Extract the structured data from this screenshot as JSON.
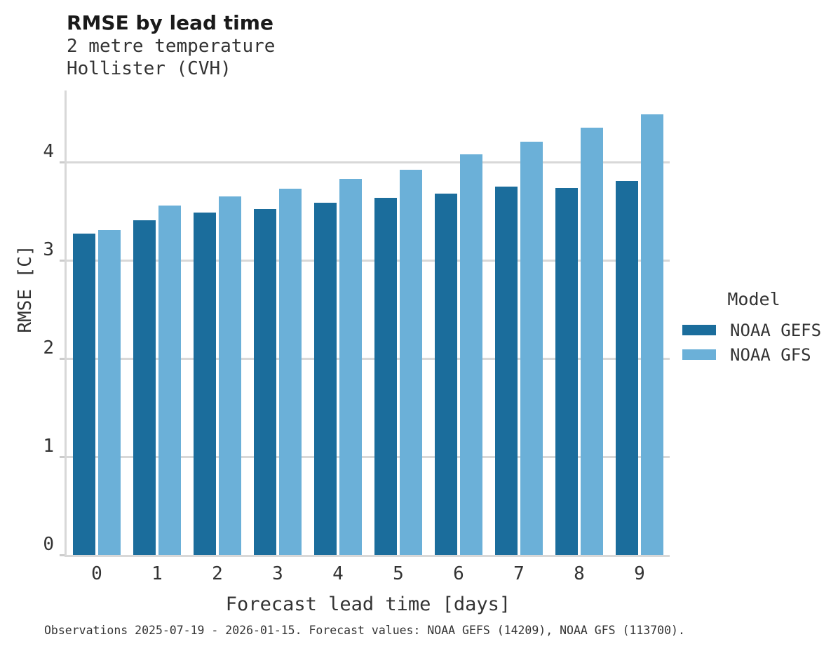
{
  "caption": "Observations 2025-07-19 - 2026-01-15. Forecast values: NOAA GEFS (14209), NOAA GFS (113700).",
  "colors": {
    "gefs_bar": "#1b6d9c",
    "gfs_bar": "#6bb0d8",
    "grid": "#d8d8d8",
    "text": "#333333",
    "title_text": "#1a1a1a"
  },
  "chart_data": {
    "type": "bar",
    "title": "RMSE by lead time",
    "subtitle": [
      "2 metre temperature",
      "Hollister (CVH)"
    ],
    "xlabel": "Forecast lead time [days]",
    "ylabel": "RMSE [C]",
    "categories": [
      "0",
      "1",
      "2",
      "3",
      "4",
      "5",
      "6",
      "7",
      "8",
      "9"
    ],
    "series": [
      {
        "name": "NOAA GEFS",
        "color": "#1b6d9c",
        "values": [
          3.27,
          3.41,
          3.49,
          3.52,
          3.59,
          3.64,
          3.68,
          3.75,
          3.74,
          3.81
        ]
      },
      {
        "name": "NOAA GFS",
        "color": "#6bb0d8",
        "values": [
          3.31,
          3.56,
          3.65,
          3.73,
          3.83,
          3.92,
          4.08,
          4.21,
          4.35,
          4.49
        ]
      }
    ],
    "ylim": [
      0,
      4.73
    ],
    "yticks": [
      0,
      1,
      2,
      3,
      4
    ],
    "grid": "horizontal-behind-bars",
    "legend_title": "Model",
    "legend_position": "right"
  }
}
